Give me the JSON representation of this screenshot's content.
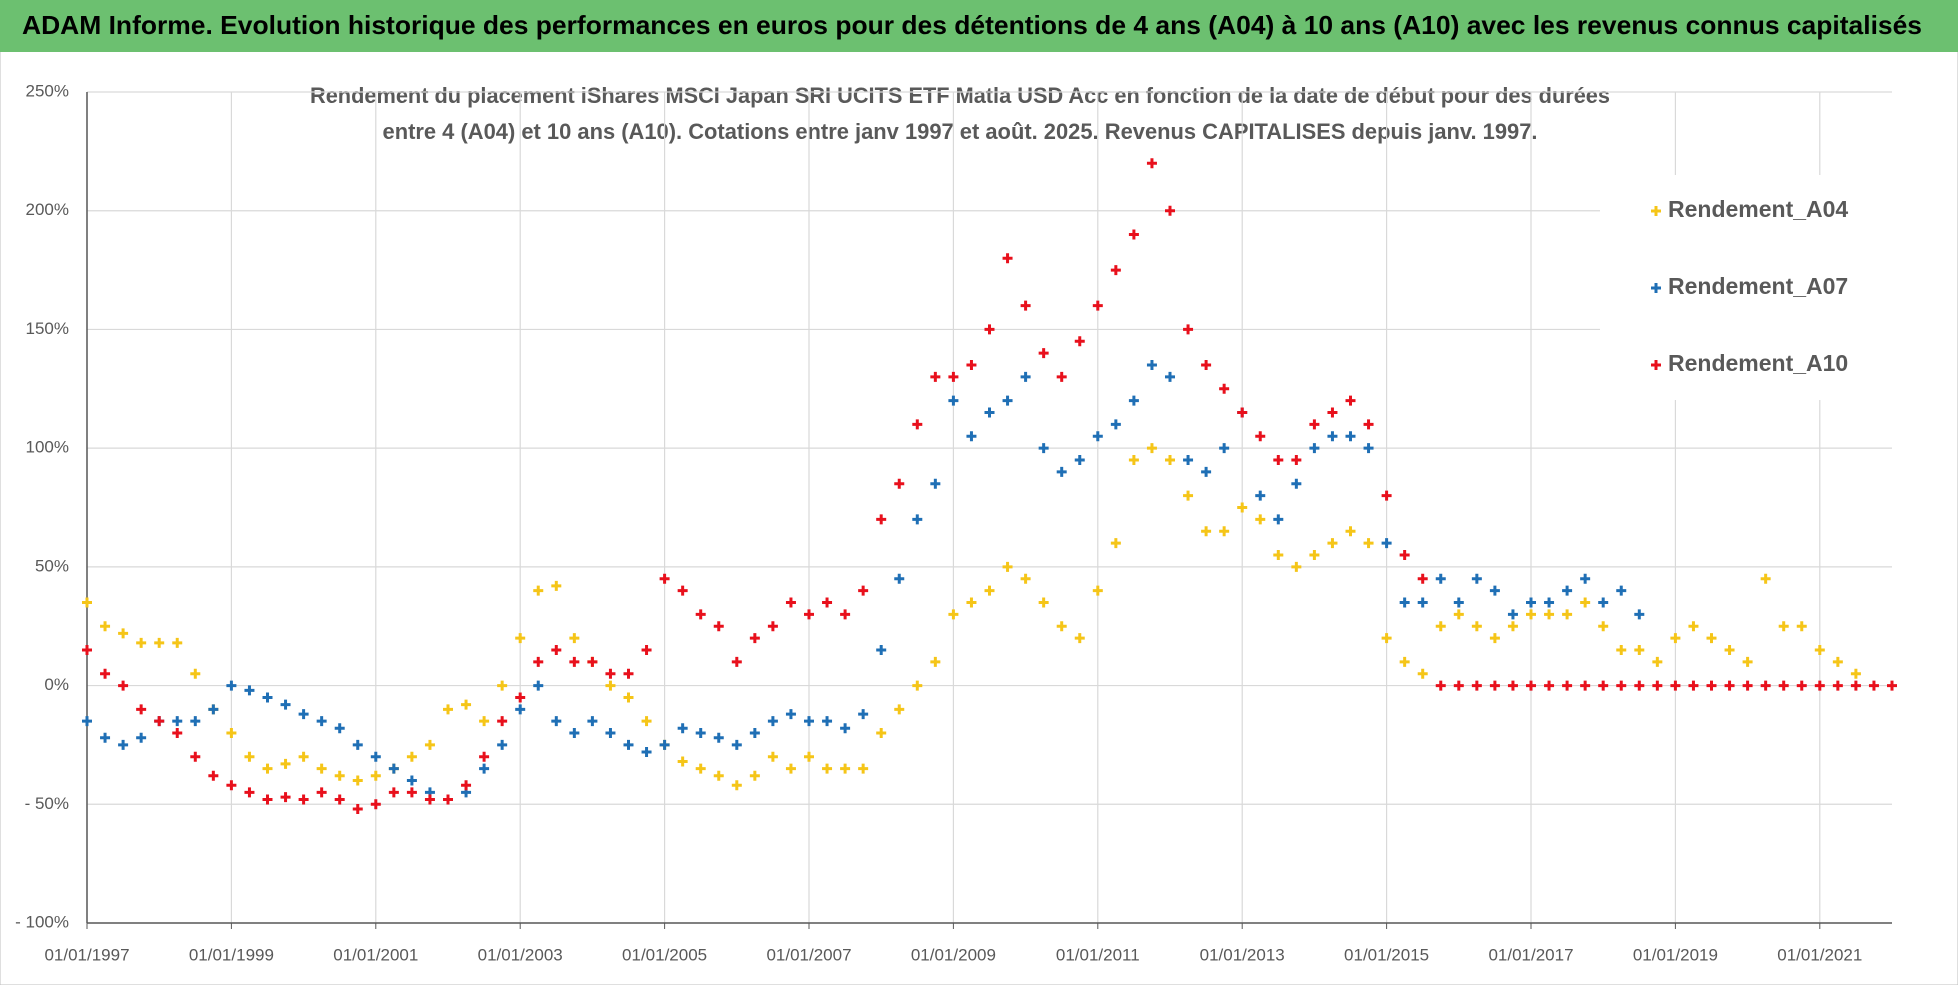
{
  "header": {
    "title": "ADAM Informe. Evolution historique des performances en euros pour des détentions de 4 ans (A04) à 10 ans (A10) avec les revenus connus capitalisés"
  },
  "chart_data": {
    "type": "scatter",
    "title": [
      "Rendement du placement iShares MSCI Japan SRI UCITS ETF Matla USD Acc en fonction de la date de début pour des durées",
      "entre 4 (A04) et 10 ans (A10). Cotations entre janv 1997 et août. 2025. Revenus CAPITALISES depuis janv. 1997."
    ],
    "x": [
      "01/01/1997",
      "01/04/1997",
      "01/07/1997",
      "01/10/1997",
      "01/01/1998",
      "01/04/1998",
      "01/07/1998",
      "01/10/1998",
      "01/01/1999",
      "01/04/1999",
      "01/07/1999",
      "01/10/1999",
      "01/01/2000",
      "01/04/2000",
      "01/07/2000",
      "01/10/2000",
      "01/01/2001",
      "01/04/2001",
      "01/07/2001",
      "01/10/2001",
      "01/01/2002",
      "01/04/2002",
      "01/07/2002",
      "01/10/2002",
      "01/01/2003",
      "01/04/2003",
      "01/07/2003",
      "01/10/2003",
      "01/01/2004",
      "01/04/2004",
      "01/07/2004",
      "01/10/2004",
      "01/01/2005",
      "01/04/2005",
      "01/07/2005",
      "01/10/2005",
      "01/01/2006",
      "01/04/2006",
      "01/07/2006",
      "01/10/2006",
      "01/01/2007",
      "01/04/2007",
      "01/07/2007",
      "01/10/2007",
      "01/01/2008",
      "01/04/2008",
      "01/07/2008",
      "01/10/2008",
      "01/01/2009",
      "01/04/2009",
      "01/07/2009",
      "01/10/2009",
      "01/01/2010",
      "01/04/2010",
      "01/07/2010",
      "01/10/2010",
      "01/01/2011",
      "01/04/2011",
      "01/07/2011",
      "01/10/2011",
      "01/01/2012",
      "01/04/2012",
      "01/07/2012",
      "01/10/2012",
      "01/01/2013",
      "01/04/2013",
      "01/07/2013",
      "01/10/2013",
      "01/01/2014",
      "01/04/2014",
      "01/07/2014",
      "01/10/2014",
      "01/01/2015",
      "01/04/2015",
      "01/07/2015",
      "01/10/2015",
      "01/01/2016",
      "01/04/2016",
      "01/07/2016",
      "01/10/2016",
      "01/01/2017",
      "01/04/2017",
      "01/07/2017",
      "01/10/2017",
      "01/01/2018",
      "01/04/2018",
      "01/07/2018",
      "01/10/2018",
      "01/01/2019",
      "01/04/2019",
      "01/07/2019",
      "01/10/2019",
      "01/01/2020",
      "01/04/2020",
      "01/07/2020",
      "01/10/2020",
      "01/01/2021",
      "01/04/2021",
      "01/07/2021",
      "01/10/2021",
      "01/01/2022"
    ],
    "series": [
      {
        "name": "Rendement_A04",
        "color": "#f5c518",
        "values": [
          35,
          25,
          22,
          18,
          18,
          18,
          5,
          -10,
          -20,
          -30,
          -35,
          -33,
          -30,
          -35,
          -38,
          -40,
          -38,
          -35,
          -30,
          -25,
          -10,
          -8,
          -15,
          0,
          20,
          40,
          42,
          20,
          10,
          0,
          -5,
          -15,
          -25,
          -32,
          -35,
          -38,
          -42,
          -38,
          -30,
          -35,
          -30,
          -35,
          -35,
          -35,
          -20,
          -10,
          0,
          10,
          30,
          35,
          40,
          50,
          45,
          35,
          25,
          20,
          40,
          60,
          95,
          100,
          95,
          80,
          65,
          65,
          75,
          70,
          55,
          50,
          55,
          60,
          65,
          60,
          20,
          10,
          5,
          25,
          30,
          25,
          20,
          25,
          30,
          30,
          30,
          35,
          25,
          15,
          15,
          10,
          20,
          25,
          20,
          15,
          10,
          45,
          25,
          25,
          15,
          10,
          5,
          null,
          null
        ]
      },
      {
        "name": "Rendement_A07",
        "color": "#1f6fb5",
        "values": [
          -15,
          -22,
          -25,
          -22,
          -15,
          -15,
          -15,
          -10,
          0,
          -2,
          -5,
          -8,
          -12,
          -15,
          -18,
          -25,
          -30,
          -35,
          -40,
          -45,
          -48,
          -45,
          -35,
          -25,
          -10,
          0,
          -15,
          -20,
          -15,
          -20,
          -25,
          -28,
          -25,
          -18,
          -20,
          -22,
          -25,
          -20,
          -15,
          -12,
          -15,
          -15,
          -18,
          -12,
          15,
          45,
          70,
          85,
          120,
          105,
          115,
          120,
          130,
          100,
          90,
          95,
          105,
          110,
          120,
          135,
          130,
          95,
          90,
          100,
          115,
          80,
          70,
          85,
          100,
          105,
          105,
          100,
          60,
          35,
          35,
          45,
          35,
          45,
          40,
          30,
          35,
          35,
          40,
          45,
          35,
          40,
          30,
          null,
          null,
          null,
          null,
          null,
          null,
          null,
          null,
          null,
          null,
          null,
          null,
          null,
          null
        ]
      },
      {
        "name": "Rendement_A10",
        "color": "#e8101c",
        "values": [
          15,
          5,
          0,
          -10,
          -15,
          -20,
          -30,
          -38,
          -42,
          -45,
          -48,
          -47,
          -48,
          -45,
          -48,
          -52,
          -50,
          -45,
          -45,
          -48,
          -48,
          -42,
          -30,
          -15,
          -5,
          10,
          15,
          10,
          10,
          5,
          5,
          15,
          45,
          40,
          30,
          25,
          10,
          20,
          25,
          35,
          30,
          35,
          30,
          40,
          70,
          85,
          110,
          130,
          130,
          135,
          150,
          180,
          160,
          140,
          130,
          145,
          160,
          175,
          190,
          220,
          200,
          150,
          135,
          125,
          115,
          105,
          95,
          95,
          110,
          115,
          120,
          110,
          80,
          55,
          45,
          0,
          0,
          0,
          0,
          0,
          0,
          0,
          0,
          0,
          0,
          0,
          0,
          0,
          0,
          0,
          0,
          0,
          0,
          0,
          0,
          0,
          0,
          0,
          0,
          0,
          0
        ]
      }
    ],
    "xlim": [
      "01/01/1997",
      "01/01/2022"
    ],
    "xticks": [
      "01/01/1997",
      "01/01/1999",
      "01/01/2001",
      "01/01/2003",
      "01/01/2005",
      "01/01/2007",
      "01/01/2009",
      "01/01/2011",
      "01/01/2013",
      "01/01/2015",
      "01/01/2017",
      "01/01/2019",
      "01/01/2021"
    ],
    "ylim": [
      -100,
      250
    ],
    "yticks": [
      {
        "value": -100,
        "label": "- 100%"
      },
      {
        "value": -50,
        "label": "- 50%"
      },
      {
        "value": 0,
        "label": "0%"
      },
      {
        "value": 50,
        "label": "50%"
      },
      {
        "value": 100,
        "label": "100%"
      },
      {
        "value": 150,
        "label": "150%"
      },
      {
        "value": 200,
        "label": "200%"
      },
      {
        "value": 250,
        "label": "250%"
      }
    ],
    "grid": true,
    "legend": "right"
  }
}
